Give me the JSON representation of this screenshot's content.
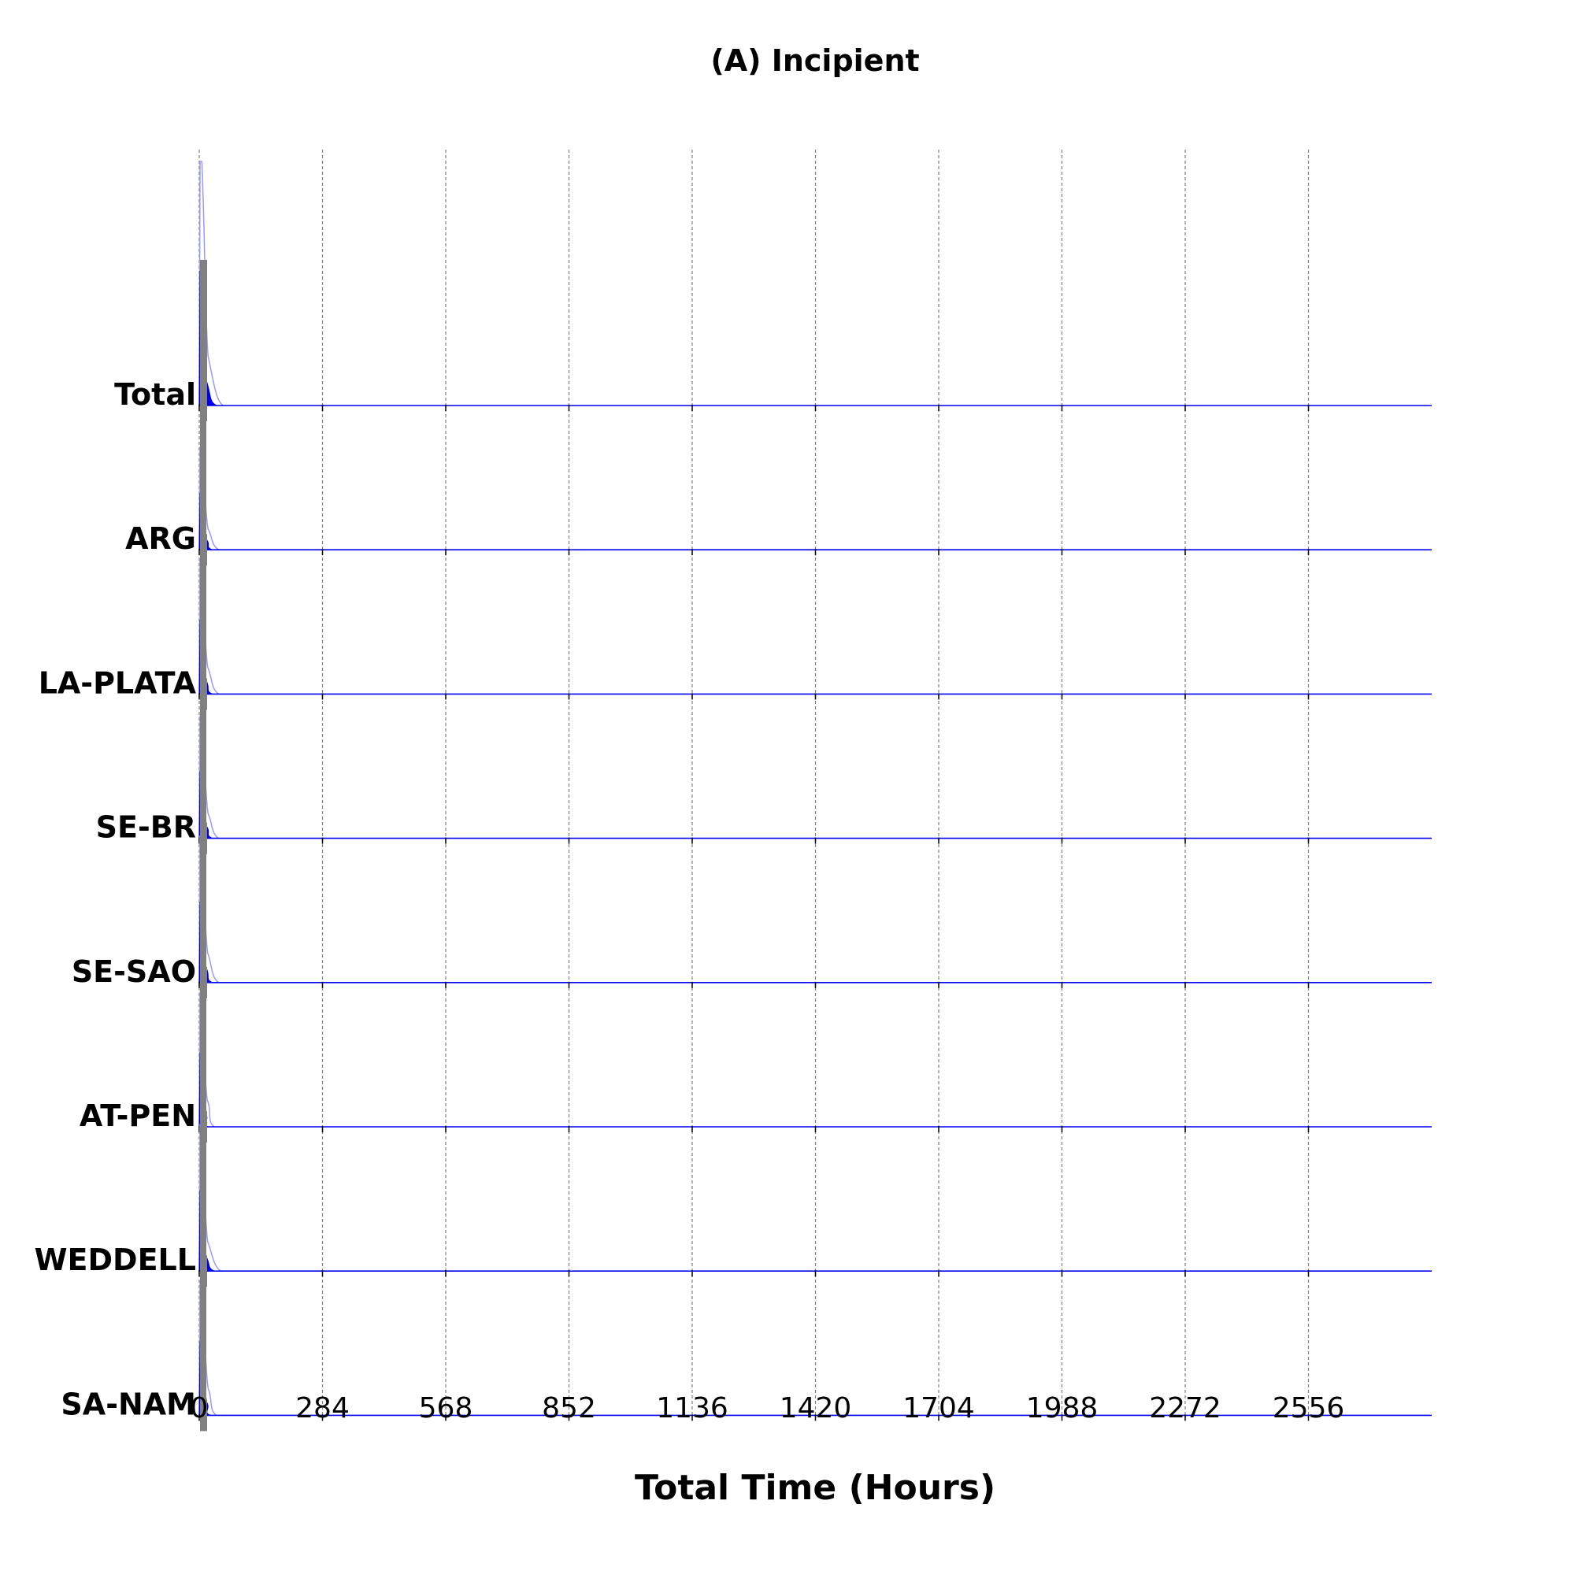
{
  "chart_data": {
    "type": "area",
    "subtype": "ridgeline",
    "title": "(A) Incipient",
    "xlabel": "Total Time (Hours)",
    "ylabel": "",
    "xlim": [
      0,
      2840
    ],
    "x_ticks": [
      0,
      284,
      568,
      852,
      1136,
      1420,
      1704,
      1988,
      2272,
      2556
    ],
    "grid": "vertical dashed at x ticks",
    "colors": {
      "fill": "#0000ee",
      "outline": "#9999ff",
      "baseline": "#0000ee",
      "marker": "#808080",
      "grid": "#808080"
    },
    "series": [
      {
        "name": "Total",
        "peak_hours": 6,
        "relative_height": 1.0,
        "tail_end_hours": 55
      },
      {
        "name": "ARG",
        "peak_hours": 6,
        "relative_height": 0.42,
        "tail_end_hours": 45
      },
      {
        "name": "LA-PLATA",
        "peak_hours": 5,
        "relative_height": 0.55,
        "tail_end_hours": 45
      },
      {
        "name": "SE-BR",
        "peak_hours": 6,
        "relative_height": 0.5,
        "tail_end_hours": 45
      },
      {
        "name": "SE-SAO",
        "peak_hours": 5,
        "relative_height": 0.6,
        "tail_end_hours": 45
      },
      {
        "name": "AT-PEN",
        "peak_hours": 4,
        "relative_height": 0.55,
        "tail_end_hours": 35
      },
      {
        "name": "WEDDELL",
        "peak_hours": 5,
        "relative_height": 0.6,
        "tail_end_hours": 50
      },
      {
        "name": "SA-NAM",
        "peak_hours": 6,
        "relative_height": 0.55,
        "tail_end_hours": 40
      }
    ]
  }
}
